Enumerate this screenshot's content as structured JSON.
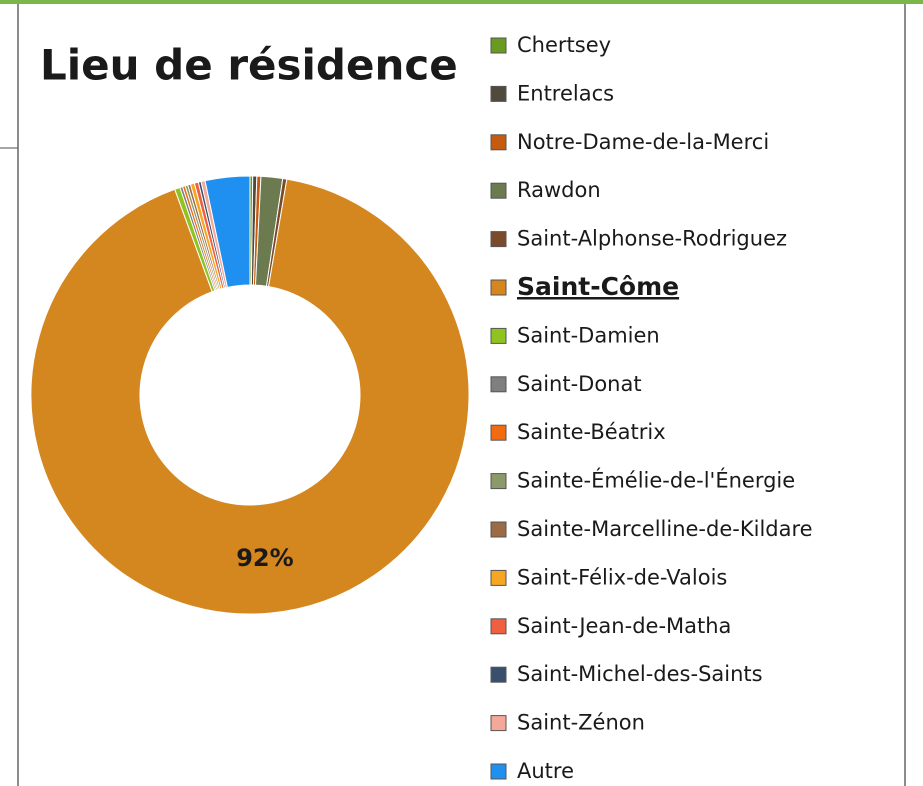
{
  "chart_data": {
    "type": "donut",
    "title": "Lieu de résidence",
    "categories": [
      "Chertsey",
      "Entrelacs",
      "Notre-Dame-de-la-Merci",
      "Rawdon",
      "Saint-Alphonse-Rodriguez",
      "Saint-Côme",
      "Saint-Damien",
      "Saint-Donat",
      "Sainte-Béatrix",
      "Sainte-Émélie-de-l'Énergie",
      "Sainte-Marcelline-de-Kildare",
      "Saint-Félix-de-Valois",
      "Saint-Jean-de-Matha",
      "Saint-Michel-des-Saints",
      "Saint-Zénon",
      "Autre"
    ],
    "values": [
      0.2,
      0.3,
      0.3,
      1.6,
      0.3,
      92,
      0.4,
      0.2,
      0.2,
      0.2,
      0.2,
      0.3,
      0.3,
      0.2,
      0.3,
      3.3
    ],
    "value_labels": [
      null,
      null,
      null,
      null,
      null,
      "92%",
      null,
      null,
      null,
      null,
      null,
      null,
      null,
      null,
      null,
      null
    ],
    "colors": [
      "#6a9a1f",
      "#4f4a3c",
      "#c55a11",
      "#6b7a4f",
      "#7a4a2a",
      "#d4861f",
      "#8fc31f",
      "#7f7f7f",
      "#f26b10",
      "#8c9a6a",
      "#9c6b43",
      "#f5a623",
      "#f06040",
      "#3a4f6e",
      "#f4a89a",
      "#1f8ff0"
    ],
    "legend_highlight": 5
  }
}
